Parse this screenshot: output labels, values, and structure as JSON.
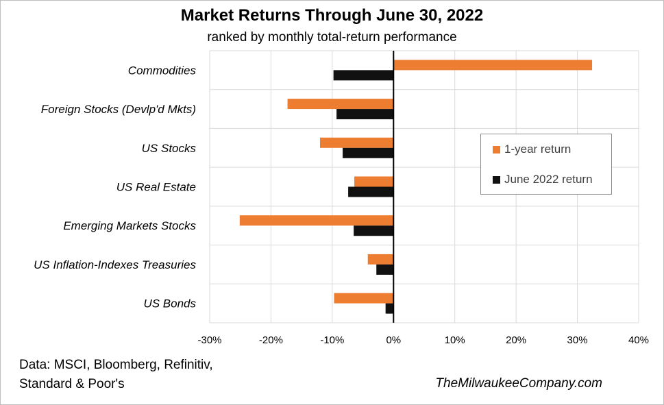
{
  "title": "Market Returns Through June 30, 2022",
  "subtitle": "ranked by monthly total-return performance",
  "source_lines": [
    "Data: MSCI, Bloomberg, Refinitiv,",
    "Standard & Poor's"
  ],
  "credit": "TheMilwaukeeCompany.com",
  "chart_data": {
    "type": "bar",
    "orientation": "horizontal",
    "categories": [
      "Commodities",
      "Foreign Stocks (Devlp'd Mkts)",
      "US Stocks",
      "US Real Estate",
      "Emerging Markets Stocks",
      "US Inflation-Indexes Treasuries",
      "US Bonds"
    ],
    "series": [
      {
        "name": "1-year return",
        "color": "#ed7d31",
        "values": [
          32.4,
          -17.3,
          -12.0,
          -6.4,
          -25.1,
          -4.2,
          -9.7
        ]
      },
      {
        "name": "June 2022 return",
        "color": "#111111",
        "values": [
          -9.8,
          -9.3,
          -8.3,
          -7.4,
          -6.5,
          -2.8,
          -1.3
        ]
      }
    ],
    "xlim": [
      -30,
      40
    ],
    "xticks": [
      -30,
      -20,
      -10,
      0,
      10,
      20,
      30,
      40
    ],
    "xtick_labels": [
      "-30%",
      "-20%",
      "-10%",
      "0%",
      "10%",
      "20%",
      "30%",
      "40%"
    ],
    "grid": true,
    "legend_position": "right"
  }
}
